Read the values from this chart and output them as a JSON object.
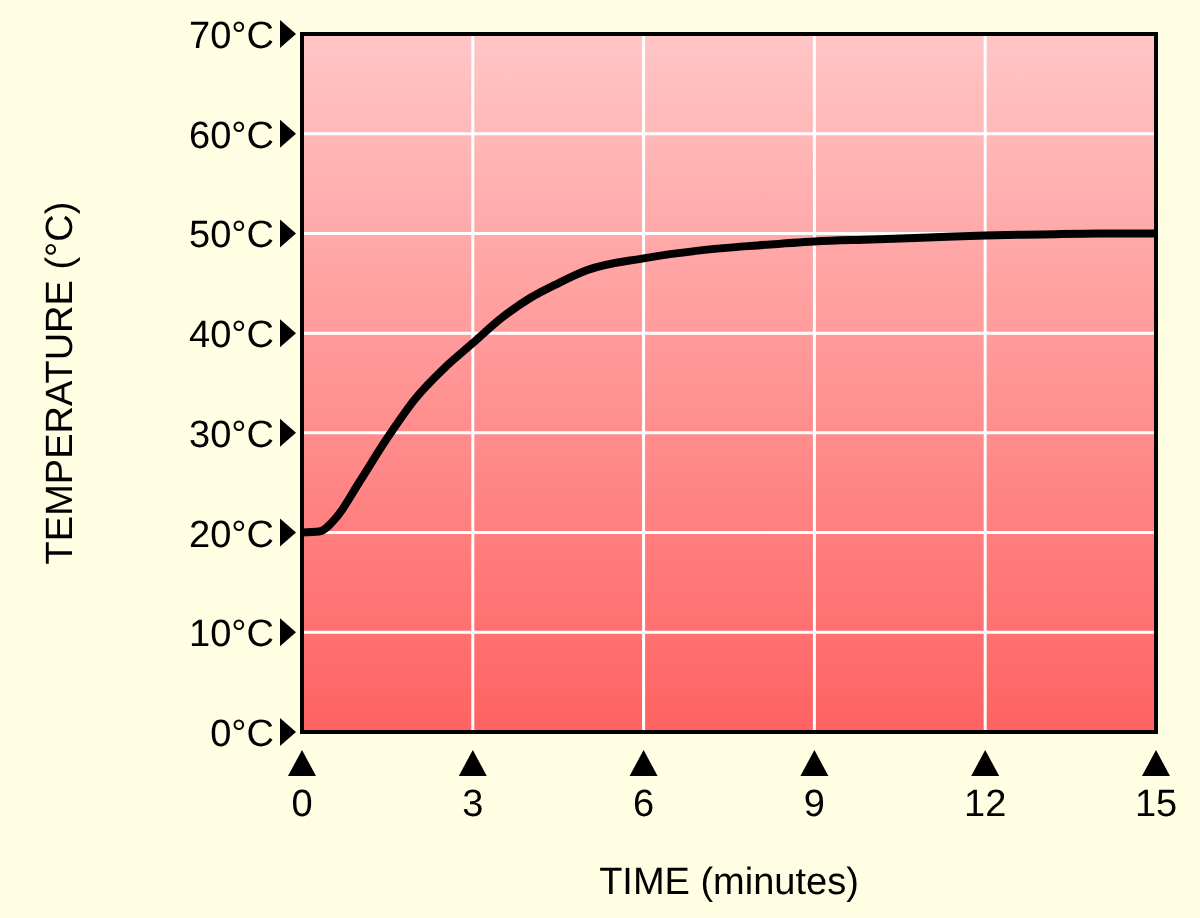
{
  "chart_data": {
    "type": "line",
    "xlabel": "TIME (minutes)",
    "ylabel": "TEMPERATURE (°C)",
    "x": [
      0,
      0.3,
      0.6,
      1,
      1.5,
      2,
      2.5,
      3,
      3.5,
      4,
      4.5,
      5,
      6,
      7,
      8,
      9,
      10,
      11,
      12,
      13,
      14,
      15
    ],
    "series": [
      {
        "color": "#000000",
        "values": [
          20,
          20.1,
          21.5,
          25,
          29.5,
          33.5,
          36.5,
          39,
          41.5,
          43.5,
          45,
          46.3,
          47.5,
          48.3,
          48.8,
          49.2,
          49.4,
          49.6,
          49.8,
          49.9,
          50,
          50
        ]
      }
    ],
    "xlim": [
      0,
      15
    ],
    "xticks": [
      0,
      3,
      6,
      9,
      12,
      15
    ],
    "ylim": [
      0,
      70
    ],
    "yticks": [
      {
        "value": 0,
        "label": "0°C"
      },
      {
        "value": 10,
        "label": "10°C"
      },
      {
        "value": 20,
        "label": "20°C"
      },
      {
        "value": 30,
        "label": "30°C"
      },
      {
        "value": 40,
        "label": "40°C"
      },
      {
        "value": 50,
        "label": "50°C"
      },
      {
        "value": 60,
        "label": "60°C"
      },
      {
        "value": 70,
        "label": "70°C"
      }
    ],
    "grid": true,
    "marker": "none",
    "line_style": "solid"
  }
}
